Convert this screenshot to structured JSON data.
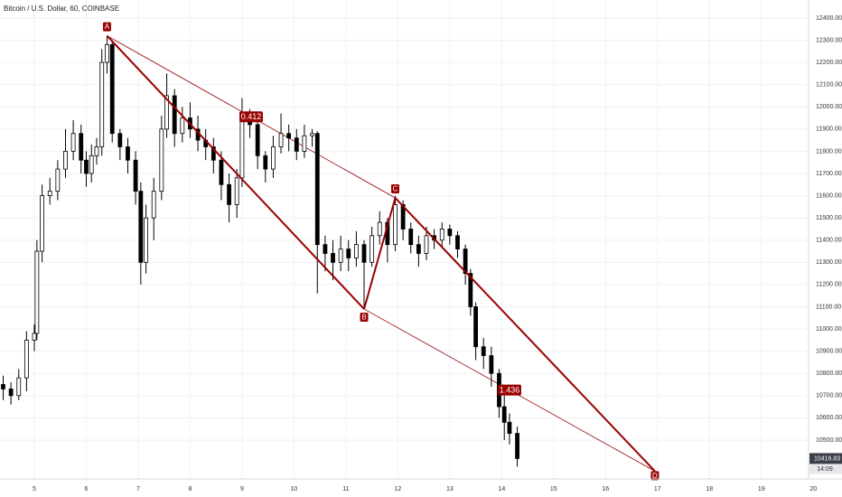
{
  "chart_data": {
    "type": "candlestick",
    "title": "Bitcoin / U.S. Dollar, 60, COINBASE",
    "x": [
      4.4,
      4.55,
      4.7,
      4.85,
      5.0,
      5.05,
      5.15,
      5.3,
      5.45,
      5.6,
      5.75,
      5.9,
      6.0,
      6.1,
      6.2,
      6.3,
      6.4,
      6.5,
      6.65,
      6.8,
      6.95,
      7.05,
      7.15,
      7.3,
      7.45,
      7.55,
      7.7,
      7.85,
      8.0,
      8.15,
      8.3,
      8.45,
      8.6,
      8.75,
      8.9,
      9.0,
      9.15,
      9.3,
      9.45,
      9.6,
      9.75,
      9.9,
      10.05,
      10.2,
      10.35,
      10.45,
      10.6,
      10.75,
      10.9,
      11.05,
      11.2,
      11.35,
      11.5,
      11.65,
      11.8,
      11.95,
      12.1,
      12.25,
      12.4,
      12.55,
      12.7,
      12.85,
      13.0,
      13.15,
      13.3,
      13.4,
      13.5,
      13.65,
      13.8,
      13.95,
      14.05,
      14.15,
      14.3
    ],
    "open": [
      10750,
      10730,
      10700,
      10780,
      10950,
      10980,
      11350,
      11600,
      11620,
      11720,
      11800,
      11880,
      11760,
      11700,
      11780,
      11820,
      12200,
      12280,
      11880,
      11820,
      11760,
      11620,
      11300,
      11500,
      11620,
      11900,
      12050,
      11880,
      11950,
      11900,
      11850,
      11820,
      11760,
      11650,
      11560,
      11680,
      11950,
      11920,
      11780,
      11720,
      11820,
      11880,
      11860,
      11800,
      11870,
      11880,
      11380,
      11340,
      11300,
      11360,
      11320,
      11380,
      11300,
      11420,
      11480,
      11380,
      11560,
      11450,
      11380,
      11340,
      11420,
      11400,
      11450,
      11420,
      11360,
      11250,
      11100,
      10920,
      10880,
      10800,
      10650,
      10580,
      10530
    ],
    "high": [
      10790,
      10760,
      10820,
      10990,
      11020,
      11400,
      11650,
      11680,
      11760,
      11900,
      11940,
      11920,
      11800,
      11830,
      11860,
      12260,
      12320,
      12300,
      11900,
      11860,
      11800,
      11660,
      11560,
      11680,
      11960,
      12150,
      12080,
      12000,
      12020,
      11960,
      11900,
      11860,
      11800,
      11700,
      11720,
      12040,
      11990,
      11950,
      11800,
      11870,
      11970,
      11920,
      11900,
      11920,
      11900,
      11890,
      11420,
      11400,
      11420,
      11400,
      11440,
      11400,
      11460,
      11530,
      11500,
      11600,
      11580,
      11480,
      11420,
      11460,
      11450,
      11480,
      11470,
      11440,
      11380,
      11270,
      11120,
      10960,
      10920,
      10820,
      10700,
      10620,
      10560
    ],
    "low": [
      10680,
      10660,
      10680,
      10720,
      10900,
      10950,
      11300,
      11560,
      11580,
      11680,
      11760,
      11700,
      11640,
      11660,
      11740,
      11780,
      12150,
      11840,
      11760,
      11700,
      11560,
      11200,
      11250,
      11400,
      11580,
      11860,
      11820,
      11840,
      11860,
      11800,
      11760,
      11700,
      11580,
      11480,
      11500,
      11640,
      11860,
      11720,
      11660,
      11680,
      11790,
      11800,
      11760,
      11770,
      11820,
      11160,
      11260,
      11220,
      11260,
      11260,
      11280,
      11090,
      11280,
      11380,
      11300,
      11350,
      11400,
      11340,
      11280,
      11310,
      11360,
      11370,
      11380,
      11320,
      11200,
      11060,
      10860,
      10820,
      10740,
      10600,
      10500,
      10480,
      10380
    ],
    "close": [
      10730,
      10700,
      10780,
      10950,
      10980,
      11350,
      11600,
      11620,
      11720,
      11800,
      11880,
      11760,
      11700,
      11780,
      11820,
      12200,
      12280,
      11880,
      11820,
      11760,
      11620,
      11300,
      11500,
      11620,
      11900,
      12050,
      11880,
      11950,
      11900,
      11850,
      11820,
      11760,
      11650,
      11560,
      11680,
      11950,
      11920,
      11780,
      11720,
      11820,
      11880,
      11860,
      11800,
      11870,
      11880,
      11380,
      11340,
      11300,
      11360,
      11320,
      11380,
      11300,
      11420,
      11480,
      11380,
      11560,
      11450,
      11380,
      11340,
      11420,
      11400,
      11450,
      11420,
      11360,
      11250,
      11100,
      10920,
      10880,
      10800,
      10650,
      10580,
      10530,
      10416.83
    ],
    "up_color": "#ffffff",
    "down_color": "#000000",
    "xlim": [
      4.339,
      19.996
    ],
    "xticks": [
      5,
      6,
      7,
      8,
      9,
      10,
      11,
      12,
      13,
      14,
      15,
      16,
      17,
      18,
      19,
      20
    ],
    "ylim": [
      10325,
      12481
    ],
    "yticks": [
      {
        "value": 10500,
        "label": "10500.00"
      },
      {
        "value": 10600,
        "label": "10600.00"
      },
      {
        "value": 10700,
        "label": "10700.00"
      },
      {
        "value": 10800,
        "label": "10800.00"
      },
      {
        "value": 10900,
        "label": "10900.00"
      },
      {
        "value": 11000,
        "label": "11000.00"
      },
      {
        "value": 11100,
        "label": "11100.00"
      },
      {
        "value": 11200,
        "label": "11200.00"
      },
      {
        "value": 11300,
        "label": "11300.00"
      },
      {
        "value": 11400,
        "label": "11400.00"
      },
      {
        "value": 11500,
        "label": "11500.00"
      },
      {
        "value": 11600,
        "label": "11600.00"
      },
      {
        "value": 11700,
        "label": "11700.00"
      },
      {
        "value": 11800,
        "label": "11800.00"
      },
      {
        "value": 11900,
        "label": "11900.00"
      },
      {
        "value": 12000,
        "label": "12000.00"
      },
      {
        "value": 12100,
        "label": "12100.00"
      },
      {
        "value": 12200,
        "label": "12200.00"
      },
      {
        "value": 12300,
        "label": "12300.00"
      },
      {
        "value": 12400,
        "label": "12400.00"
      }
    ],
    "grid": true,
    "pattern": {
      "color": "#990000",
      "points": [
        {
          "label": "A",
          "x": 6.4,
          "y": 12320
        },
        {
          "label": "B",
          "x": 11.35,
          "y": 11090
        },
        {
          "label": "C",
          "x": 11.95,
          "y": 11590
        },
        {
          "label": "D",
          "x": 16.95,
          "y": 10360
        }
      ],
      "ratios": [
        0.412,
        1.436
      ]
    },
    "last_price": 10416.83,
    "countdown": "14:09"
  }
}
